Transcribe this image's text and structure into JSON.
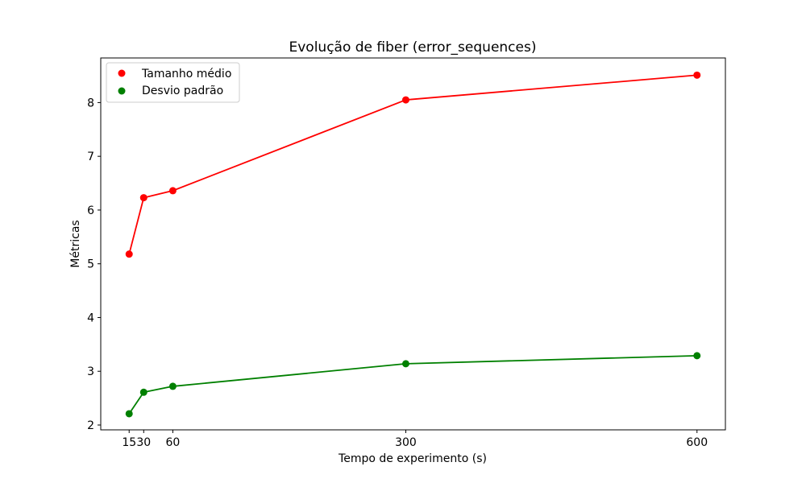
{
  "chart_data": {
    "type": "line",
    "title": "Evolução de fiber (error_sequences)",
    "xlabel": "Tempo de experimento (s)",
    "ylabel": "Métricas",
    "x": [
      15,
      30,
      60,
      300,
      600
    ],
    "xticks": [
      15,
      30,
      60,
      300,
      600
    ],
    "xtick_labels": [
      "15",
      "30",
      "60",
      "300",
      "600"
    ],
    "xlim": [
      -14.25,
      629.25
    ],
    "yticks": [
      2,
      3,
      4,
      5,
      6,
      7,
      8
    ],
    "ytick_labels": [
      "2",
      "3",
      "4",
      "5",
      "6",
      "7",
      "8"
    ],
    "ylim": [
      1.91,
      8.83
    ],
    "grid": false,
    "legend_position": "top-left",
    "series": [
      {
        "name": "Tamanho médio",
        "values": [
          5.18,
          6.23,
          6.36,
          8.05,
          8.51
        ],
        "color": "#ff0000"
      },
      {
        "name": "Desvio padrão",
        "values": [
          2.21,
          2.61,
          2.72,
          3.14,
          3.29
        ],
        "color": "#008000"
      }
    ]
  }
}
